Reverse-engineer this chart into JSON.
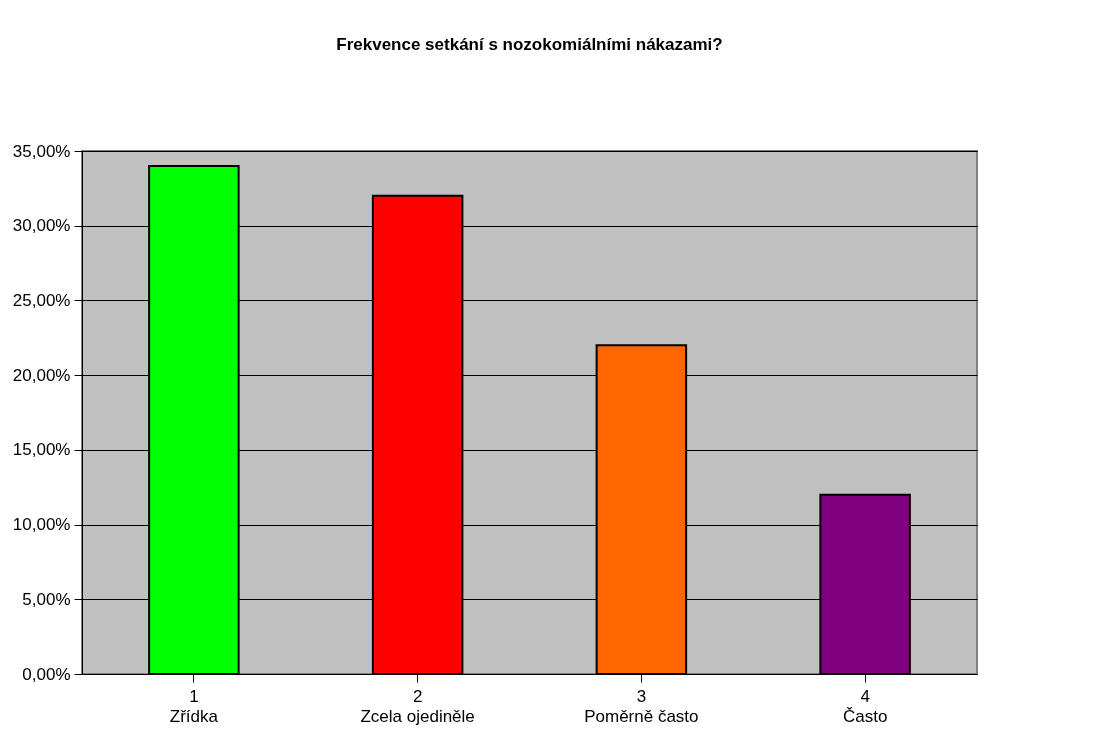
{
  "chart_data": {
    "type": "bar",
    "title": "Frekvence setkání s nozokomiálními nákazami?",
    "categories": [
      "1\nZřídka",
      "2\nZcela ojediněle",
      "3\nPoměrně často",
      "4\nČasto"
    ],
    "values": [
      34,
      32,
      22,
      12
    ],
    "colors": [
      "#00ff00",
      "#ff0000",
      "#ff6600",
      "#800080"
    ],
    "ylim": [
      0,
      35
    ],
    "yticks": [
      {
        "value": 0,
        "label": "0,00%"
      },
      {
        "value": 5,
        "label": "5,00%"
      },
      {
        "value": 10,
        "label": "10,00%"
      },
      {
        "value": 15,
        "label": "15,00%"
      },
      {
        "value": 20,
        "label": "20,00%"
      },
      {
        "value": 25,
        "label": "25,00%"
      },
      {
        "value": 30,
        "label": "30,00%"
      },
      {
        "value": 35,
        "label": "35,00%"
      }
    ],
    "grid": "y"
  }
}
